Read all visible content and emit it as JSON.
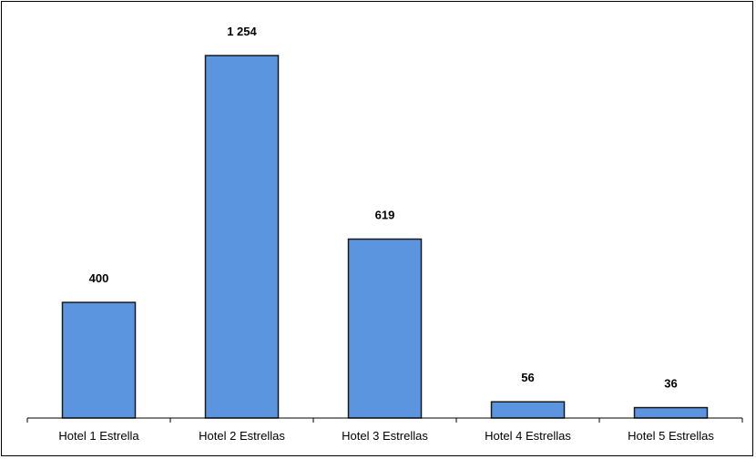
{
  "chart_data": {
    "type": "bar",
    "categories": [
      "Hotel 1 Estrella",
      "Hotel 2 Estrellas",
      "Hotel 3 Estrellas",
      "Hotel 4 Estrellas",
      "Hotel 5 Estrellas"
    ],
    "values": [
      400,
      1254,
      619,
      56,
      36
    ],
    "data_labels": [
      "400",
      "1 254",
      "619",
      "56",
      "36"
    ],
    "title": "",
    "xlabel": "",
    "ylabel": "",
    "ylim": [
      0,
      1400
    ],
    "grid": false,
    "legend": "none",
    "bar_color": "#5b95e0",
    "bar_edge_color": "#1a1a1a"
  }
}
